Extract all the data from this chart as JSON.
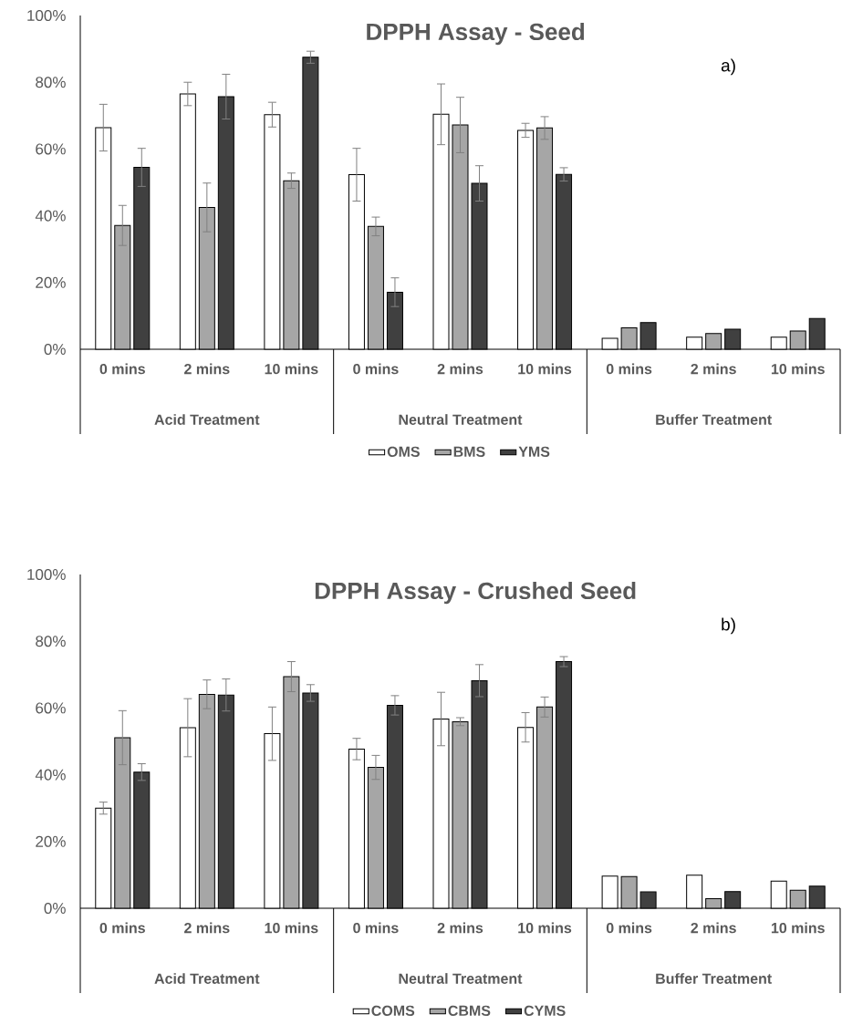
{
  "chart_data": [
    {
      "type": "bar",
      "title": "DPPH Assay - Seed",
      "categories": [
        "0 mins",
        "2 mins",
        "10 mins",
        "0 mins",
        "2 mins",
        "10 mins",
        "0 mins",
        "2 mins",
        "10 mins"
      ],
      "series": [
        {
          "name": "OMS",
          "color": "#ffffff",
          "values": [
            66.4,
            76.5,
            70.3,
            52.3,
            70.4,
            65.6,
            3.3,
            3.6,
            3.6
          ],
          "errors": [
            7,
            3.5,
            3.7,
            7.9,
            9.1,
            2.1,
            null,
            null,
            null
          ]
        },
        {
          "name": "BMS",
          "color": "#a6a6a6",
          "values": [
            37.1,
            42.5,
            50.5,
            36.8,
            67.2,
            66.3,
            6.4,
            4.7,
            5.5
          ],
          "errors": [
            6,
            7.3,
            2.3,
            2.8,
            8.3,
            3.4,
            null,
            null,
            null
          ]
        },
        {
          "name": "YMS",
          "color": "#404040",
          "values": [
            54.5,
            75.7,
            87.5,
            17.1,
            49.7,
            52.4,
            8.0,
            6.0,
            9.2
          ],
          "errors": [
            5.7,
            6.7,
            1.8,
            4.3,
            5.3,
            2,
            null,
            null,
            null
          ]
        }
      ],
      "ylim": [
        0,
        100
      ],
      "yticks": [
        {
          "value": 0,
          "label": "0%"
        },
        {
          "value": 20,
          "label": "20%"
        },
        {
          "value": 40,
          "label": "40%"
        },
        {
          "value": 60,
          "label": "60%"
        },
        {
          "value": 80,
          "label": "80%"
        },
        {
          "value": 100,
          "label": "100%"
        }
      ],
      "legend": "bottom",
      "annotations": [
        "Acid Treatment",
        "Neutral Treatment",
        "Buffer Treatment",
        "a)"
      ]
    },
    {
      "type": "bar",
      "title": "DPPH Assay - Crushed Seed",
      "categories": [
        "0 mins",
        "2 mins",
        "10 mins",
        "0 mins",
        "2 mins",
        "10 mins",
        "0 mins",
        "2 mins",
        "10 mins"
      ],
      "series": [
        {
          "name": "COMS",
          "color": "#ffffff",
          "values": [
            30.0,
            54.1,
            52.3,
            47.7,
            56.7,
            54.2,
            9.6,
            9.9,
            8.1
          ],
          "errors": [
            1.8,
            8.7,
            8,
            3.2,
            8,
            4.4,
            null,
            null,
            null
          ]
        },
        {
          "name": "CBMS",
          "color": "#a6a6a6",
          "values": [
            51.1,
            64.1,
            69.4,
            42.2,
            55.9,
            60.3,
            9.5,
            2.9,
            5.4
          ],
          "errors": [
            8.1,
            4.3,
            4.5,
            3.6,
            1.2,
            3,
            null,
            null,
            null
          ]
        },
        {
          "name": "CYMS",
          "color": "#404040",
          "values": [
            40.8,
            63.9,
            64.5,
            60.8,
            68.2,
            73.9,
            4.9,
            5.0,
            6.6
          ],
          "errors": [
            2.5,
            4.8,
            2.5,
            2.9,
            4.8,
            1.5,
            null,
            null,
            null
          ]
        }
      ],
      "ylim": [
        0,
        100
      ],
      "yticks": [
        {
          "value": 0,
          "label": "0%"
        },
        {
          "value": 20,
          "label": "20%"
        },
        {
          "value": 40,
          "label": "40%"
        },
        {
          "value": 60,
          "label": "60%"
        },
        {
          "value": 80,
          "label": "80%"
        },
        {
          "value": 100,
          "label": "100%"
        }
      ],
      "legend": "bottom",
      "annotations": [
        "Acid Treatment",
        "Neutral Treatment",
        "Buffer Treatment",
        "b)"
      ]
    }
  ]
}
